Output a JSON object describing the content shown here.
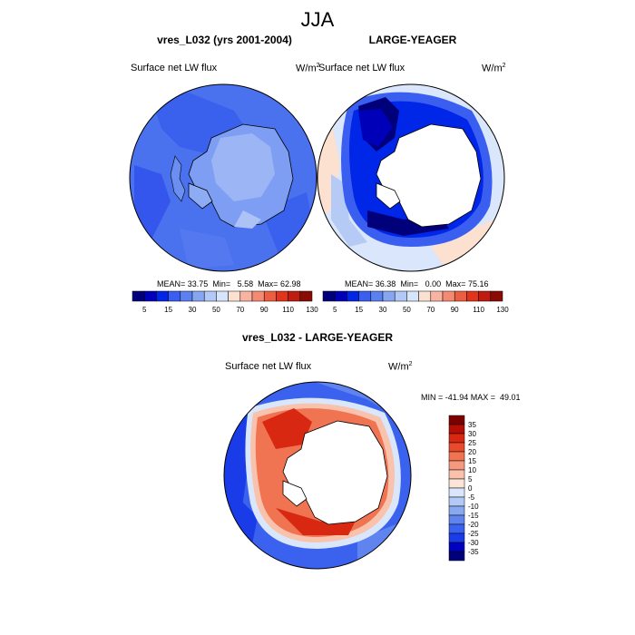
{
  "page": {
    "title": "JJA",
    "colors": {
      "seq": [
        "#00007a",
        "#0000b8",
        "#0026e8",
        "#3a5ff0",
        "#5b80f0",
        "#86a6f2",
        "#b2c8f6",
        "#d6e5fb",
        "#fce0d0",
        "#f8b4a0",
        "#f48a72",
        "#ec5e42",
        "#e2331d",
        "#be1c10",
        "#8a0a04"
      ],
      "div": [
        "#00007a",
        "#0000c0",
        "#1a3ce8",
        "#3a62ee",
        "#5f84f0",
        "#88a8f2",
        "#b4caf6",
        "#dae7fb",
        "#fde4d8",
        "#f9c2ac",
        "#f59a7e",
        "#f07452",
        "#e84a2c",
        "#d92812",
        "#b50e06",
        "#7c0000"
      ]
    }
  },
  "chart_data": [
    {
      "type": "heatmap",
      "title": "vres_L032 (yrs 2001-2004)",
      "field_label": "Surface net LW flux",
      "units": "W/m",
      "units_exp": "2",
      "stats": {
        "mean_label": "MEAN=",
        "mean": "33.75",
        "min_label": "Min=",
        "min": "5.58",
        "max_label": "Max=",
        "max": "62.98"
      },
      "colorbar": {
        "tick_labels": [
          "5",
          "15",
          "30",
          "50",
          "70",
          "90",
          "110",
          "130"
        ]
      },
      "projection": "south-polar stereographic"
    },
    {
      "type": "heatmap",
      "title": "LARGE-YEAGER",
      "field_label": "Surface net LW flux",
      "units": "W/m",
      "units_exp": "2",
      "stats": {
        "mean_label": "MEAN=",
        "mean": "36.38",
        "min_label": "Min=",
        "min": "0.00",
        "max_label": "Max=",
        "max": "75.16"
      },
      "colorbar": {
        "tick_labels": [
          "5",
          "15",
          "30",
          "50",
          "70",
          "90",
          "110",
          "130"
        ]
      },
      "projection": "south-polar stereographic"
    },
    {
      "type": "heatmap",
      "title": "vres_L032 - LARGE-YEAGER",
      "field_label": "Surface net LW flux",
      "units": "W/m",
      "units_exp": "2",
      "minmax": "MIN = -41.94 MAX =  49.01",
      "colorbar": {
        "tick_labels": [
          "35",
          "30",
          "25",
          "20",
          "15",
          "10",
          "5",
          "0",
          "-5",
          "-10",
          "-15",
          "-20",
          "-25",
          "-30",
          "-35"
        ]
      },
      "projection": "south-polar stereographic"
    }
  ]
}
